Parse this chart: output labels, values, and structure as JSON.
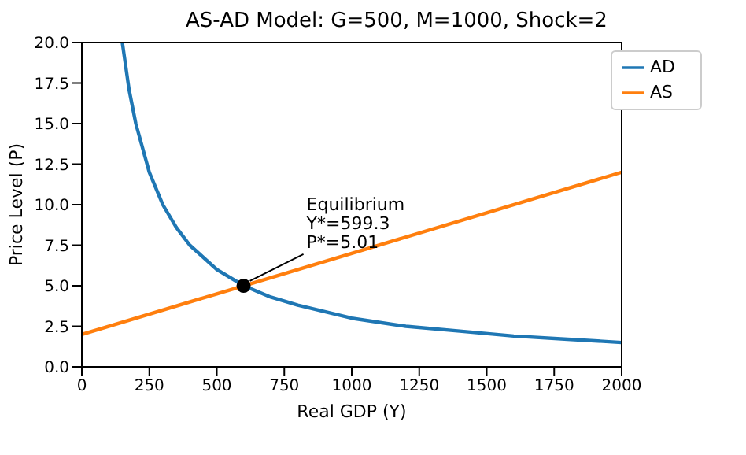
{
  "chart_data": {
    "type": "line",
    "title": "AS-AD Model: G=500, M=1000, Shock=2",
    "xlabel": "Real GDP (Y)",
    "ylabel": "Price Level (P)",
    "series": [
      {
        "name": "AD",
        "color": "#1f77b4",
        "x": [
          150,
          175,
          200,
          250,
          300,
          350,
          400,
          500,
          600,
          700,
          800,
          1000,
          1200,
          1400,
          1600,
          1800,
          2000
        ],
        "values": [
          20,
          17.1,
          15,
          12,
          10,
          8.6,
          7.5,
          6,
          5,
          4.3,
          3.8,
          3,
          2.5,
          2.2,
          1.9,
          1.7,
          1.5
        ]
      },
      {
        "name": "AS",
        "color": "#ff7f0e",
        "x": [
          0,
          500,
          1000,
          1500,
          2000
        ],
        "values": [
          2,
          4.5,
          7,
          9.5,
          12
        ]
      },
      {
        "type": "scatter",
        "color": "#000000",
        "marker": "circle",
        "x": [
          599.3
        ],
        "values": [
          5.0
        ]
      }
    ],
    "annotations": [
      {
        "text": "Equilibrium\nY*=599.3\nP*=5.01",
        "x": 599.3,
        "y": 5.01
      }
    ],
    "xlim": [
      0,
      2000
    ],
    "xticks": [
      0,
      250,
      500,
      750,
      1000,
      1250,
      1500,
      1750,
      2000
    ],
    "ylim": [
      0,
      20
    ],
    "yticks": [
      {
        "value": 0,
        "label": "0.0"
      },
      {
        "value": 2.5,
        "label": "2.5"
      },
      {
        "value": 5,
        "label": "5.0"
      },
      {
        "value": 7.5,
        "label": "7.5"
      },
      {
        "value": 10,
        "label": "10.0"
      },
      {
        "value": 12.5,
        "label": "12.5"
      },
      {
        "value": 15,
        "label": "15.0"
      },
      {
        "value": 17.5,
        "label": "17.5"
      },
      {
        "value": 20,
        "label": "20.0"
      }
    ],
    "legend": "top right",
    "line_style": "solid"
  }
}
